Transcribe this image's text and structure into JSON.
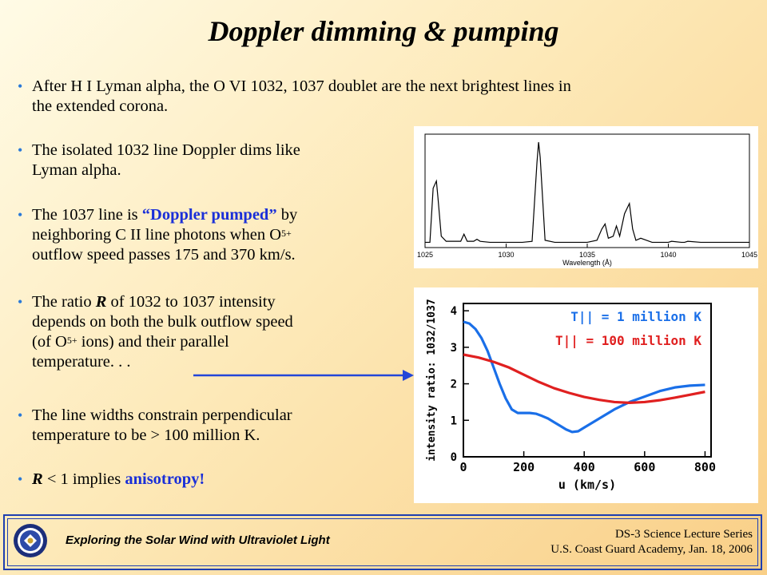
{
  "slide": {
    "title": "Doppler dimming & pumping",
    "bullets": {
      "b1_l1": "After H I Lyman alpha, the O VI 1032, 1037 doublet are the next brightest lines in",
      "b1_l2": "the extended corona.",
      "b2_l1": "The isolated 1032 line Doppler dims like",
      "b2_l2": "Lyman alpha.",
      "b3_l1a": "The 1037 line is ",
      "b3_l1b": "“Doppler pumped”",
      "b3_l1c": " by",
      "b3_l2a": "neighboring C II line photons when O",
      "b3_l2sup": "5+",
      "b3_l3": "outflow speed passes 175 and 370 km/s.",
      "b4_l1a": "The ratio ",
      "b4_l1b": "R",
      "b4_l1c": " of 1032 to 1037 intensity",
      "b4_l2": "depends on both the bulk outflow speed",
      "b4_l3a": "(of O",
      "b4_l3sup": "5+",
      "b4_l3b": " ions) and their parallel",
      "b4_l4": "temperature. . .",
      "b5_l1": "The line widths constrain perpendicular",
      "b5_l2": "temperature to be > 100 million K.",
      "b6_a": "R",
      "b6_b": " < 1 implies ",
      "b6_c": "anisotropy!"
    }
  },
  "footer": {
    "left": "Exploring the Solar Wind with Ultraviolet Light",
    "right_l1": "DS-3 Science Lecture Series",
    "right_l2": "U.S. Coast Guard Academy, Jan. 18, 2006"
  },
  "chart_data": [
    {
      "type": "line",
      "xlabel": "Wavelength (Å)",
      "ylabel": "",
      "xlim": [
        1025,
        1045
      ],
      "xticks": [
        "1025",
        "1030",
        "1035",
        "1040",
        "1045"
      ],
      "series": [
        {
          "x": [
            1025.0,
            1025.3,
            1025.5,
            1025.7,
            1025.8,
            1026.0,
            1026.3,
            1026.8,
            1027.2,
            1027.4,
            1027.6,
            1028.0,
            1028.2,
            1028.4,
            1029.0,
            1030.0,
            1031.0,
            1031.6,
            1031.9,
            1032.0,
            1032.1,
            1032.4,
            1033.0,
            1034.0,
            1035.0,
            1035.6,
            1035.9,
            1036.1,
            1036.3,
            1036.6,
            1036.8,
            1037.0,
            1037.3,
            1037.6,
            1037.8,
            1038.0,
            1038.3,
            1039.0,
            1040.0,
            1040.2,
            1040.8,
            1041.0,
            1041.2,
            1042.0,
            1043.0,
            1044.0,
            1045.0
          ],
          "y": [
            0.02,
            0.02,
            0.55,
            0.62,
            0.45,
            0.08,
            0.03,
            0.03,
            0.03,
            0.1,
            0.03,
            0.03,
            0.05,
            0.03,
            0.02,
            0.02,
            0.02,
            0.03,
            0.8,
            1.0,
            0.85,
            0.04,
            0.02,
            0.02,
            0.02,
            0.04,
            0.15,
            0.2,
            0.06,
            0.08,
            0.18,
            0.08,
            0.3,
            0.4,
            0.15,
            0.04,
            0.06,
            0.02,
            0.02,
            0.03,
            0.02,
            0.02,
            0.03,
            0.02,
            0.02,
            0.02,
            0.02
          ]
        }
      ]
    },
    {
      "type": "line",
      "xlabel": "u  (km/s)",
      "ylabel": "intensity ratio: 1032/1037",
      "xlim": [
        0,
        820
      ],
      "ylim": [
        0,
        4.2
      ],
      "xticks": [
        "0",
        "200",
        "400",
        "600",
        "800"
      ],
      "yticks": [
        "0",
        "1",
        "2",
        "3",
        "4"
      ],
      "series": [
        {
          "name": "T|| = 1 million K",
          "color": "#1a6fe8",
          "x": [
            0,
            20,
            40,
            60,
            80,
            100,
            120,
            140,
            160,
            180,
            200,
            220,
            240,
            260,
            280,
            300,
            320,
            340,
            360,
            380,
            400,
            450,
            500,
            550,
            600,
            650,
            700,
            750,
            800
          ],
          "y": [
            3.7,
            3.65,
            3.5,
            3.25,
            2.9,
            2.45,
            2.0,
            1.6,
            1.3,
            1.2,
            1.2,
            1.2,
            1.18,
            1.12,
            1.05,
            0.95,
            0.85,
            0.75,
            0.68,
            0.7,
            0.8,
            1.05,
            1.3,
            1.5,
            1.65,
            1.8,
            1.9,
            1.95,
            1.97
          ]
        },
        {
          "name": "T|| = 100 million K",
          "color": "#e02020",
          "x": [
            0,
            50,
            100,
            150,
            200,
            250,
            300,
            350,
            400,
            450,
            500,
            550,
            600,
            650,
            700,
            750,
            800
          ],
          "y": [
            2.8,
            2.72,
            2.6,
            2.45,
            2.25,
            2.05,
            1.88,
            1.75,
            1.64,
            1.56,
            1.5,
            1.48,
            1.5,
            1.55,
            1.62,
            1.7,
            1.78
          ]
        }
      ]
    }
  ]
}
